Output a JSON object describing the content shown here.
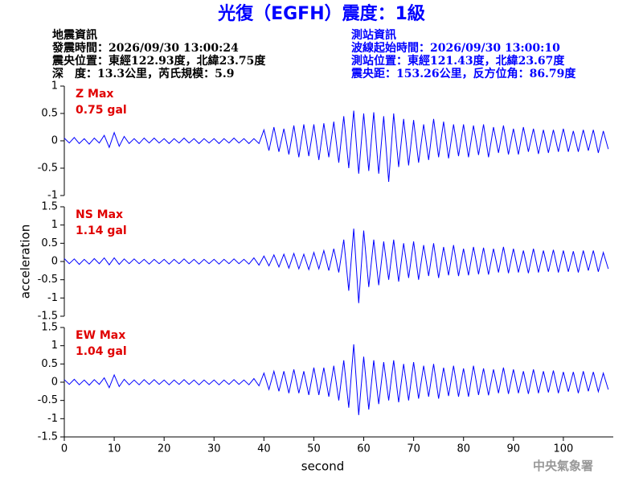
{
  "header": {
    "title": "光復（EGFH）震度：1級",
    "left_info": [
      "地震資訊",
      "發震時間：2026/09/30 13:00:24",
      "震央位置：東經122.93度，北緯23.75度",
      "深　度：13.3公里，芮氏規模：5.9"
    ],
    "right_info": [
      "測站資訊",
      "波線起始時間：2026/09/30 13:00:10",
      "測站位置：東經121.43度，北緯23.67度",
      "震央距：153.26公里，反方位角：86.79度"
    ],
    "footer": "中央氣象署"
  },
  "chart_data": [
    {
      "type": "line",
      "annotation": "Z Max",
      "max_label": "0.75 gal",
      "color": "#0000ff",
      "xlim": [
        0,
        110
      ],
      "ylim": [
        -1,
        1
      ],
      "yticks": [
        1,
        0.5,
        0,
        -0.5,
        -1
      ],
      "x": [
        0,
        1,
        2,
        3,
        4,
        5,
        6,
        7,
        8,
        9,
        10,
        11,
        12,
        13,
        14,
        15,
        16,
        17,
        18,
        19,
        20,
        21,
        22,
        23,
        24,
        25,
        26,
        27,
        28,
        29,
        30,
        31,
        32,
        33,
        34,
        35,
        36,
        37,
        38,
        39,
        40,
        41,
        42,
        43,
        44,
        45,
        46,
        47,
        48,
        49,
        50,
        51,
        52,
        53,
        54,
        55,
        56,
        57,
        58,
        59,
        60,
        61,
        62,
        63,
        64,
        65,
        66,
        67,
        68,
        69,
        70,
        71,
        72,
        73,
        74,
        75,
        76,
        77,
        78,
        79,
        80,
        81,
        82,
        83,
        84,
        85,
        86,
        87,
        88,
        89,
        90,
        91,
        92,
        93,
        94,
        95,
        96,
        97,
        98,
        99,
        100,
        101,
        102,
        103,
        104,
        105,
        106,
        107,
        108,
        109
      ],
      "values": [
        0.05,
        -0.04,
        0.06,
        -0.05,
        0.04,
        -0.06,
        0.05,
        -0.04,
        0.1,
        -0.12,
        0.15,
        -0.1,
        0.08,
        -0.05,
        0.04,
        -0.05,
        0.05,
        -0.04,
        0.05,
        -0.04,
        0.04,
        -0.05,
        0.04,
        -0.04,
        0.05,
        -0.04,
        0.04,
        -0.05,
        0.04,
        -0.04,
        0.04,
        -0.05,
        0.04,
        -0.04,
        0.05,
        -0.04,
        0.04,
        -0.05,
        0.04,
        -0.05,
        0.2,
        -0.18,
        0.25,
        -0.2,
        0.22,
        -0.25,
        0.28,
        -0.3,
        0.3,
        -0.28,
        0.3,
        -0.35,
        0.32,
        -0.3,
        0.35,
        -0.4,
        0.45,
        -0.5,
        0.55,
        -0.6,
        0.5,
        -0.55,
        0.52,
        -0.6,
        0.45,
        -0.75,
        0.5,
        -0.48,
        0.4,
        -0.45,
        0.38,
        -0.4,
        0.3,
        -0.35,
        0.4,
        -0.3,
        0.35,
        -0.32,
        0.3,
        -0.28,
        0.3,
        -0.3,
        0.28,
        -0.26,
        0.3,
        -0.3,
        0.25,
        -0.22,
        0.28,
        -0.25,
        0.22,
        -0.25,
        0.25,
        -0.2,
        0.22,
        -0.24,
        0.2,
        -0.22,
        0.2,
        -0.2,
        0.22,
        -0.2,
        0.18,
        -0.2,
        0.2,
        -0.18,
        0.2,
        -0.22,
        0.18,
        -0.15
      ]
    },
    {
      "type": "line",
      "annotation": "NS Max",
      "max_label": "1.14 gal",
      "ylabel": "acceleration",
      "color": "#0000ff",
      "xlim": [
        0,
        110
      ],
      "ylim": [
        -1.5,
        1.5
      ],
      "yticks": [
        1.5,
        1,
        0.5,
        0,
        -0.5,
        -1,
        -1.5
      ],
      "x": [
        0,
        1,
        2,
        3,
        4,
        5,
        6,
        7,
        8,
        9,
        10,
        11,
        12,
        13,
        14,
        15,
        16,
        17,
        18,
        19,
        20,
        21,
        22,
        23,
        24,
        25,
        26,
        27,
        28,
        29,
        30,
        31,
        32,
        33,
        34,
        35,
        36,
        37,
        38,
        39,
        40,
        41,
        42,
        43,
        44,
        45,
        46,
        47,
        48,
        49,
        50,
        51,
        52,
        53,
        54,
        55,
        56,
        57,
        58,
        59,
        60,
        61,
        62,
        63,
        64,
        65,
        66,
        67,
        68,
        69,
        70,
        71,
        72,
        73,
        74,
        75,
        76,
        77,
        78,
        79,
        80,
        81,
        82,
        83,
        84,
        85,
        86,
        87,
        88,
        89,
        90,
        91,
        92,
        93,
        94,
        95,
        96,
        97,
        98,
        99,
        100,
        101,
        102,
        103,
        104,
        105,
        106,
        107,
        108,
        109
      ],
      "values": [
        0.08,
        -0.06,
        0.07,
        -0.08,
        0.06,
        -0.07,
        0.08,
        -0.06,
        0.1,
        -0.09,
        0.1,
        -0.08,
        0.07,
        -0.06,
        0.07,
        -0.06,
        0.06,
        -0.07,
        0.06,
        -0.06,
        0.06,
        -0.07,
        0.06,
        -0.06,
        0.07,
        -0.06,
        0.06,
        -0.07,
        0.06,
        -0.06,
        0.06,
        -0.07,
        0.06,
        -0.06,
        0.07,
        -0.06,
        0.06,
        -0.07,
        0.1,
        -0.1,
        0.15,
        -0.12,
        0.18,
        -0.15,
        0.2,
        -0.18,
        0.22,
        -0.2,
        0.2,
        -0.22,
        0.25,
        -0.2,
        0.3,
        -0.25,
        0.35,
        -0.3,
        0.6,
        -0.8,
        0.9,
        -1.14,
        0.85,
        -0.7,
        0.6,
        -0.65,
        0.55,
        -0.5,
        0.6,
        -0.55,
        0.5,
        -0.45,
        0.55,
        -0.5,
        0.45,
        -0.4,
        0.5,
        -0.45,
        0.4,
        -0.38,
        0.45,
        -0.4,
        0.35,
        -0.38,
        0.4,
        -0.35,
        0.38,
        -0.36,
        0.35,
        -0.3,
        0.4,
        -0.32,
        0.35,
        -0.3,
        0.3,
        -0.32,
        0.35,
        -0.3,
        0.3,
        -0.28,
        0.32,
        -0.3,
        0.3,
        -0.28,
        0.28,
        -0.3,
        0.3,
        -0.25,
        0.3,
        -0.28,
        0.25,
        -0.2
      ]
    },
    {
      "type": "line",
      "annotation": "EW Max",
      "max_label": "1.04 gal",
      "xlabel": "second",
      "color": "#0000ff",
      "xlim": [
        0,
        110
      ],
      "ylim": [
        -1.5,
        1.5
      ],
      "yticks": [
        1.5,
        1,
        0.5,
        0,
        -0.5,
        -1,
        -1.5
      ],
      "xticks": [
        0,
        10,
        20,
        30,
        40,
        50,
        60,
        70,
        80,
        90,
        100
      ],
      "x": [
        0,
        1,
        2,
        3,
        4,
        5,
        6,
        7,
        8,
        9,
        10,
        11,
        12,
        13,
        14,
        15,
        16,
        17,
        18,
        19,
        20,
        21,
        22,
        23,
        24,
        25,
        26,
        27,
        28,
        29,
        30,
        31,
        32,
        33,
        34,
        35,
        36,
        37,
        38,
        39,
        40,
        41,
        42,
        43,
        44,
        45,
        46,
        47,
        48,
        49,
        50,
        51,
        52,
        53,
        54,
        55,
        56,
        57,
        58,
        59,
        60,
        61,
        62,
        63,
        64,
        65,
        66,
        67,
        68,
        69,
        70,
        71,
        72,
        73,
        74,
        75,
        76,
        77,
        78,
        79,
        80,
        81,
        82,
        83,
        84,
        85,
        86,
        87,
        88,
        89,
        90,
        91,
        92,
        93,
        94,
        95,
        96,
        97,
        98,
        99,
        100,
        101,
        102,
        103,
        104,
        105,
        106,
        107,
        108,
        109
      ],
      "values": [
        0.07,
        -0.06,
        0.08,
        -0.07,
        0.06,
        -0.08,
        0.07,
        -0.06,
        0.12,
        -0.15,
        0.2,
        -0.12,
        0.08,
        -0.07,
        0.06,
        -0.07,
        0.07,
        -0.06,
        0.07,
        -0.06,
        0.06,
        -0.07,
        0.06,
        -0.06,
        0.07,
        -0.06,
        0.06,
        -0.07,
        0.06,
        -0.06,
        0.06,
        -0.07,
        0.06,
        -0.06,
        0.07,
        -0.06,
        0.06,
        -0.07,
        0.1,
        -0.1,
        0.25,
        -0.2,
        0.3,
        -0.25,
        0.3,
        -0.3,
        0.35,
        -0.3,
        0.3,
        -0.35,
        0.4,
        -0.35,
        0.4,
        -0.4,
        0.45,
        -0.5,
        0.6,
        -0.7,
        1.04,
        -0.9,
        0.7,
        -0.75,
        0.6,
        -0.6,
        0.55,
        -0.5,
        0.6,
        -0.55,
        0.5,
        -0.5,
        0.55,
        -0.45,
        0.45,
        -0.4,
        0.5,
        -0.45,
        0.4,
        -0.38,
        0.45,
        -0.4,
        0.38,
        -0.4,
        0.45,
        -0.35,
        0.38,
        -0.36,
        0.35,
        -0.3,
        0.4,
        -0.32,
        0.35,
        -0.3,
        0.3,
        -0.32,
        0.35,
        -0.3,
        0.3,
        -0.28,
        0.32,
        -0.3,
        0.28,
        -0.26,
        0.28,
        -0.3,
        0.3,
        -0.25,
        0.28,
        -0.26,
        0.25,
        -0.2
      ]
    }
  ]
}
